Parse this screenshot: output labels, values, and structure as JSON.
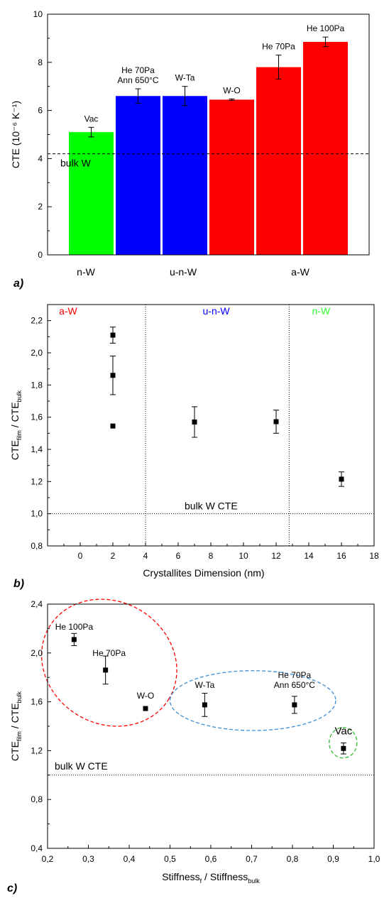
{
  "chart_data": [
    {
      "type": "bar",
      "panel_label": "a)",
      "ylabel": "CTE (10⁻⁶ K⁻¹)",
      "ylim": [
        0,
        10
      ],
      "yticks": [
        "0",
        "2",
        "4",
        "6",
        "8",
        "10"
      ],
      "reference_line": {
        "value": 4.2,
        "label": "bulk W",
        "style": "dashed"
      },
      "groups": [
        {
          "label": "n-W",
          "color": "#00ff00"
        },
        {
          "label": "u-n-W",
          "color": "#0000ff"
        },
        {
          "label": "a-W",
          "color": "#ff0000"
        }
      ],
      "bars": [
        {
          "label": [
            "Vac"
          ],
          "value": 5.1,
          "error": 0.2,
          "group": 0
        },
        {
          "label": [
            "He 70Pa",
            "Ann 650°C"
          ],
          "value": 6.6,
          "error": 0.3,
          "group": 1
        },
        {
          "label": [
            "W-Ta"
          ],
          "value": 6.6,
          "error": 0.4,
          "group": 1
        },
        {
          "label": [
            "W-O"
          ],
          "value": 6.45,
          "error": 0.03,
          "group": 2
        },
        {
          "label": [
            "He 70Pa"
          ],
          "value": 7.8,
          "error": 0.5,
          "group": 2
        },
        {
          "label": [
            "He 100Pa"
          ],
          "value": 8.85,
          "error": 0.2,
          "group": 2
        }
      ]
    },
    {
      "type": "scatter",
      "panel_label": "b)",
      "xlabel": "Crystallites Dimension (nm)",
      "ylabel": "CTE_film / CTE_bulk",
      "ylabel_main": "CTE",
      "ylabel_sub1": "film",
      "ylabel_mid": " / CTE",
      "ylabel_sub2": "bulk",
      "xlim": [
        -2,
        18
      ],
      "ylim": [
        0.8,
        2.3
      ],
      "xticks": [
        {
          "v": 0,
          "t": "0"
        },
        {
          "v": 2,
          "t": "2"
        },
        {
          "v": 4,
          "t": "4"
        },
        {
          "v": 6,
          "t": "6"
        },
        {
          "v": 8,
          "t": "8"
        },
        {
          "v": 10,
          "t": "10"
        },
        {
          "v": 12,
          "t": "12"
        },
        {
          "v": 14,
          "t": "14"
        },
        {
          "v": 16,
          "t": "16"
        },
        {
          "v": 18,
          "t": "18"
        }
      ],
      "yticks": [
        {
          "v": 0.8,
          "t": "0,8"
        },
        {
          "v": 1.0,
          "t": "1,0"
        },
        {
          "v": 1.2,
          "t": "1,2"
        },
        {
          "v": 1.4,
          "t": "1,4"
        },
        {
          "v": 1.6,
          "t": "1,6"
        },
        {
          "v": 1.8,
          "t": "1,8"
        },
        {
          "v": 2.0,
          "t": "2,0"
        },
        {
          "v": 2.2,
          "t": "2,2"
        }
      ],
      "reference_line": {
        "value": 1.0,
        "label": "bulk W CTE",
        "style": "dotted"
      },
      "dividers": [
        4,
        12.8
      ],
      "regions": [
        {
          "label": "a-W",
          "color": "#ff0000",
          "x": -1.3
        },
        {
          "label": "u-n-W",
          "color": "#0000ff",
          "x": 7.5
        },
        {
          "label": "n-W",
          "color": "#33ff33",
          "x": 14.2
        }
      ],
      "points": [
        {
          "x": 2,
          "y": 2.11,
          "err": 0.05
        },
        {
          "x": 2,
          "y": 1.86,
          "err": 0.12
        },
        {
          "x": 2,
          "y": 1.545,
          "err": 0.0
        },
        {
          "x": 7,
          "y": 1.57,
          "err": 0.095
        },
        {
          "x": 12,
          "y": 1.572,
          "err": 0.072
        },
        {
          "x": 16,
          "y": 1.215,
          "err": 0.045
        }
      ]
    },
    {
      "type": "scatter",
      "panel_label": "c)",
      "xlabel_main": "Stiffness",
      "xlabel_sub1": "f",
      "xlabel_mid": " / Stiffness",
      "xlabel_sub2": "bulk",
      "xlabel": "Stiffness_f / Stiffness_bulk",
      "ylabel": "CTE_film / CTE_bulk",
      "ylabel_main": "CTE",
      "ylabel_sub1": "film",
      "ylabel_mid": " / CTE",
      "ylabel_sub2": "bulk",
      "xlim": [
        0.2,
        1.0
      ],
      "ylim": [
        0.4,
        2.4
      ],
      "xticks": [
        {
          "v": 0.2,
          "t": "0,2"
        },
        {
          "v": 0.3,
          "t": "0,3"
        },
        {
          "v": 0.4,
          "t": "0,4"
        },
        {
          "v": 0.5,
          "t": "0,5"
        },
        {
          "v": 0.6,
          "t": "0,6"
        },
        {
          "v": 0.7,
          "t": "0,7"
        },
        {
          "v": 0.8,
          "t": "0,8"
        },
        {
          "v": 0.9,
          "t": "0,9"
        },
        {
          "v": 1.0,
          "t": "1,0"
        }
      ],
      "yticks": [
        {
          "v": 0.4,
          "t": "0,4"
        },
        {
          "v": 0.8,
          "t": "0,8"
        },
        {
          "v": 1.2,
          "t": "1,2"
        },
        {
          "v": 1.6,
          "t": "1,6"
        },
        {
          "v": 2.0,
          "t": "2,0"
        },
        {
          "v": 2.4,
          "t": "2,4"
        }
      ],
      "reference_line": {
        "value": 1.0,
        "label": "bulk W CTE",
        "style": "dotted"
      },
      "points": [
        {
          "x": 0.265,
          "y": 2.11,
          "err": 0.05,
          "label": [
            "He 100Pa"
          ]
        },
        {
          "x": 0.342,
          "y": 1.86,
          "err": 0.115,
          "label": [
            "He 70Pa"
          ]
        },
        {
          "x": 0.44,
          "y": 1.545,
          "err": 0.0,
          "label": [
            "W-O"
          ]
        },
        {
          "x": 0.585,
          "y": 1.575,
          "err": 0.095,
          "label": [
            "W-Ta"
          ]
        },
        {
          "x": 0.805,
          "y": 1.575,
          "err": 0.07,
          "label": [
            "He 70Pa",
            "Ann 650°C"
          ]
        },
        {
          "x": 0.925,
          "y": 1.218,
          "err": 0.045,
          "label": [
            "Vac"
          ]
        }
      ],
      "clusters": [
        {
          "cx": 0.351,
          "cy": 1.92,
          "rx": 0.171,
          "ry": 0.5,
          "rot": 31,
          "color": "#ff0000"
        },
        {
          "cx": 0.703,
          "cy": 1.61,
          "rx": 0.203,
          "ry": 0.245,
          "rot": 0,
          "color": "#3c8ed6"
        },
        {
          "cx": 0.924,
          "cy": 1.265,
          "rx": 0.034,
          "ry": 0.125,
          "rot": 0,
          "color": "#33bb33"
        }
      ]
    }
  ]
}
